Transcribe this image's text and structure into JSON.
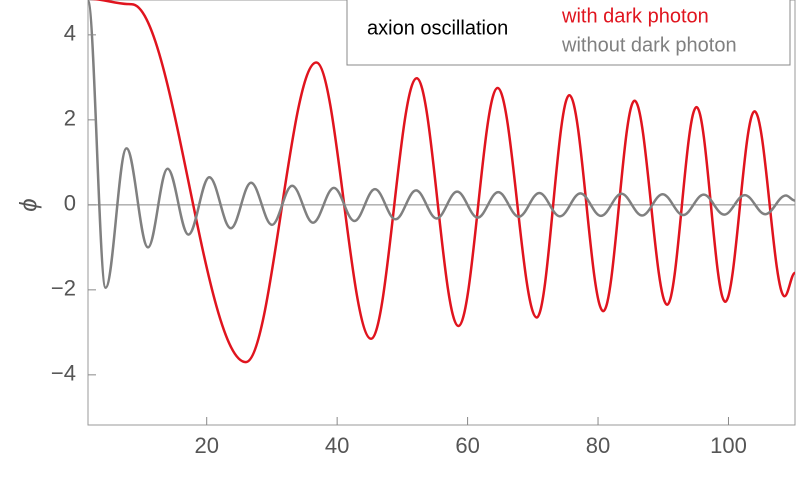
{
  "chart_data": {
    "type": "line",
    "ylabel": "ϕ",
    "legend_title": "axion oscillation",
    "xlim": [
      1.8,
      110.2
    ],
    "ylim": [
      -5.18,
      4.82
    ],
    "xticks": [
      20,
      40,
      60,
      80,
      100
    ],
    "yticks": [
      4,
      2,
      0,
      {
        "value": -2,
        "label": "−2"
      },
      {
        "value": -4,
        "label": "−4"
      }
    ],
    "legend": "top-right",
    "series": [
      {
        "name": "with dark photon",
        "color": "#e0141e",
        "x": [
          1.8,
          8.5,
          26.0,
          36.8,
          45.2,
          52.2,
          58.6,
          64.6,
          70.6,
          75.6,
          80.8,
          85.6,
          90.6,
          95.1,
          99.5,
          104.0,
          108.6,
          110.2
        ],
        "values": [
          4.85,
          4.72,
          -3.7,
          3.35,
          -3.15,
          2.98,
          -2.85,
          2.75,
          -2.65,
          2.58,
          -2.5,
          2.45,
          -2.35,
          2.3,
          -2.28,
          2.2,
          -2.15,
          -1.6
        ]
      },
      {
        "name": "without dark photon",
        "color": "#808080",
        "x": [
          1.8,
          4.5,
          7.7,
          11.0,
          14.0,
          17.2,
          20.4,
          23.7,
          26.8,
          30.0,
          33.1,
          36.3,
          39.5,
          42.65,
          45.8,
          48.95,
          52.1,
          55.25,
          58.4,
          61.55,
          64.7,
          67.85,
          71.0,
          74.15,
          77.3,
          80.45,
          83.6,
          86.75,
          89.9,
          93.05,
          96.2,
          99.35,
          102.5,
          105.65,
          108.8,
          110.2
        ],
        "values": [
          4.8,
          -1.95,
          1.33,
          -1.0,
          0.85,
          -0.7,
          0.65,
          -0.55,
          0.52,
          -0.47,
          0.45,
          -0.42,
          0.4,
          -0.38,
          0.37,
          -0.34,
          0.34,
          -0.32,
          0.31,
          -0.3,
          0.3,
          -0.28,
          0.28,
          -0.27,
          0.27,
          -0.26,
          0.26,
          -0.25,
          0.25,
          -0.24,
          0.24,
          -0.23,
          0.23,
          -0.22,
          0.22,
          0.1
        ]
      }
    ]
  }
}
